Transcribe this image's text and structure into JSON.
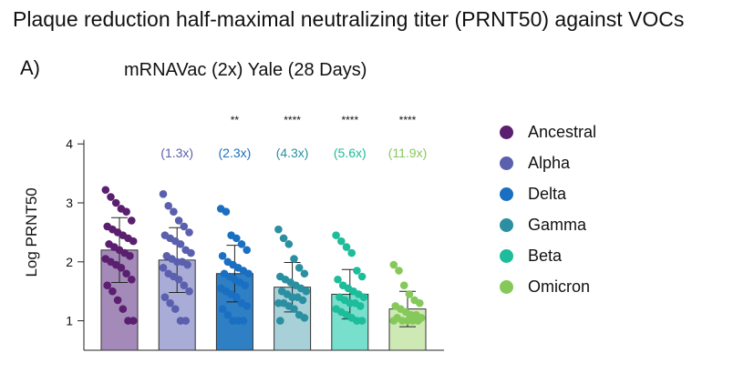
{
  "page_title": "Plaque reduction half-maximal neutralizing titer (PRNT50) against VOCs",
  "panel_label": "A)",
  "chart_data": {
    "type": "bar",
    "title": "mRNAVac (2x) Yale (28 Days)",
    "xlabel": "",
    "ylabel": "Log PRNT50",
    "ylim": [
      0.5,
      4.25
    ],
    "yticks": [
      1,
      2,
      3,
      4
    ],
    "error_bars": "standard deviation",
    "categories": [
      "Ancestral",
      "Alpha",
      "Delta",
      "Gamma",
      "Beta",
      "Omicron"
    ],
    "values": [
      2.2,
      2.03,
      1.8,
      1.57,
      1.45,
      1.2
    ],
    "error": [
      0.55,
      0.55,
      0.48,
      0.42,
      0.42,
      0.3
    ],
    "fold_change": [
      "",
      "(1.3x)",
      "(2.3x)",
      "(4.3x)",
      "(5.6x)",
      "(11.9x)"
    ],
    "significance": [
      "",
      "",
      "**",
      "****",
      "****",
      "****"
    ],
    "colors": {
      "Ancestral": {
        "fill": "#a48ab8",
        "point": "#5b1f6f"
      },
      "Alpha": {
        "fill": "#a9acd6",
        "point": "#5a5fae"
      },
      "Delta": {
        "fill": "#2f7fc4",
        "point": "#1a6fc2"
      },
      "Gamma": {
        "fill": "#a7d0d8",
        "point": "#2a8fa0"
      },
      "Beta": {
        "fill": "#79dfcd",
        "point": "#1dbc9a"
      },
      "Omicron": {
        "fill": "#cfe9b4",
        "point": "#86c95b"
      }
    },
    "label_colors": [
      "#5a5fae",
      "#5a5fae",
      "#1a6fc2",
      "#2a8fa0",
      "#1dbc9a",
      "#86c95b"
    ],
    "points": [
      [
        3.22,
        3.1,
        3.0,
        2.9,
        2.85,
        2.7,
        2.6,
        2.55,
        2.5,
        2.45,
        2.4,
        2.35,
        2.3,
        2.25,
        2.2,
        2.15,
        2.1,
        2.05,
        2.0,
        1.95,
        1.9,
        1.8,
        1.7,
        1.6,
        1.5,
        1.35,
        1.2,
        1.0,
        1.0
      ],
      [
        3.15,
        2.95,
        2.85,
        2.7,
        2.6,
        2.5,
        2.45,
        2.4,
        2.35,
        2.3,
        2.2,
        2.15,
        2.1,
        2.05,
        2.0,
        2.0,
        1.95,
        1.9,
        1.8,
        1.75,
        1.7,
        1.6,
        1.5,
        1.4,
        1.3,
        1.2,
        1.0,
        1.0
      ],
      [
        2.9,
        2.85,
        2.45,
        2.4,
        2.3,
        2.2,
        2.1,
        2.0,
        1.95,
        1.9,
        1.85,
        1.8,
        1.8,
        1.75,
        1.7,
        1.65,
        1.6,
        1.55,
        1.5,
        1.45,
        1.4,
        1.3,
        1.25,
        1.2,
        1.1,
        1.0,
        1.0,
        1.0
      ],
      [
        2.55,
        2.4,
        2.3,
        2.05,
        1.9,
        1.8,
        1.75,
        1.7,
        1.65,
        1.6,
        1.55,
        1.5,
        1.5,
        1.45,
        1.4,
        1.4,
        1.35,
        1.3,
        1.3,
        1.25,
        1.2,
        1.1,
        1.05,
        1.0
      ],
      [
        2.45,
        2.35,
        2.25,
        2.15,
        1.85,
        1.75,
        1.7,
        1.6,
        1.55,
        1.5,
        1.45,
        1.4,
        1.4,
        1.35,
        1.3,
        1.3,
        1.25,
        1.2,
        1.15,
        1.1,
        1.05,
        1.0,
        1.0
      ],
      [
        1.95,
        1.85,
        1.6,
        1.45,
        1.35,
        1.3,
        1.25,
        1.2,
        1.15,
        1.1,
        1.1,
        1.05,
        1.05,
        1.0,
        1.0,
        1.0,
        1.0,
        1.0
      ]
    ]
  }
}
